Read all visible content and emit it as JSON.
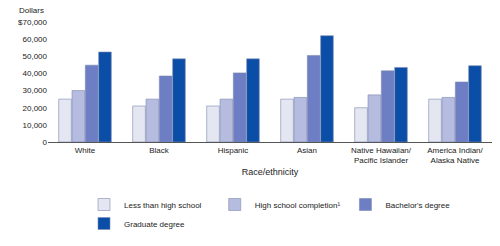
{
  "chart_data": {
    "type": "bar",
    "y_label": "Dollars",
    "x_label": "Race/ethnicity",
    "categories": [
      "White",
      "Black",
      "Hispanic",
      "Asian",
      "Native Hawaiian/ Pacific Islander",
      "America Indian/ Alaska Native"
    ],
    "series": [
      {
        "name": "Less than high school",
        "color": "#e4e7f1",
        "values": [
          25000,
          21000,
          21000,
          25000,
          20000,
          25000
        ]
      },
      {
        "name": "High school completion¹",
        "color": "#b5bce0",
        "values": [
          30000,
          25000,
          25000,
          26000,
          27500,
          26000
        ]
      },
      {
        "name": "Bachelor's degree",
        "color": "#6d7ec4",
        "values": [
          44800,
          38500,
          40300,
          50500,
          41500,
          35000
        ]
      },
      {
        "name": "Graduate degree",
        "color": "#0b4ea8",
        "values": [
          52500,
          48500,
          48500,
          62000,
          43500,
          44500
        ]
      }
    ],
    "ylim": [
      0,
      70000
    ],
    "yticks": [
      0,
      {
        "value": 10000,
        "label": "10,000"
      },
      {
        "value": 20000,
        "label": "20,000"
      },
      {
        "value": 30000,
        "label": "30,000"
      },
      {
        "value": 40000,
        "label": "40,000"
      },
      {
        "value": 50000,
        "label": "50,000"
      },
      {
        "value": 60000,
        "label": "60,000"
      },
      {
        "value": 70000,
        "label": "$70,000"
      }
    ],
    "grid": false,
    "legend": "bottom"
  }
}
